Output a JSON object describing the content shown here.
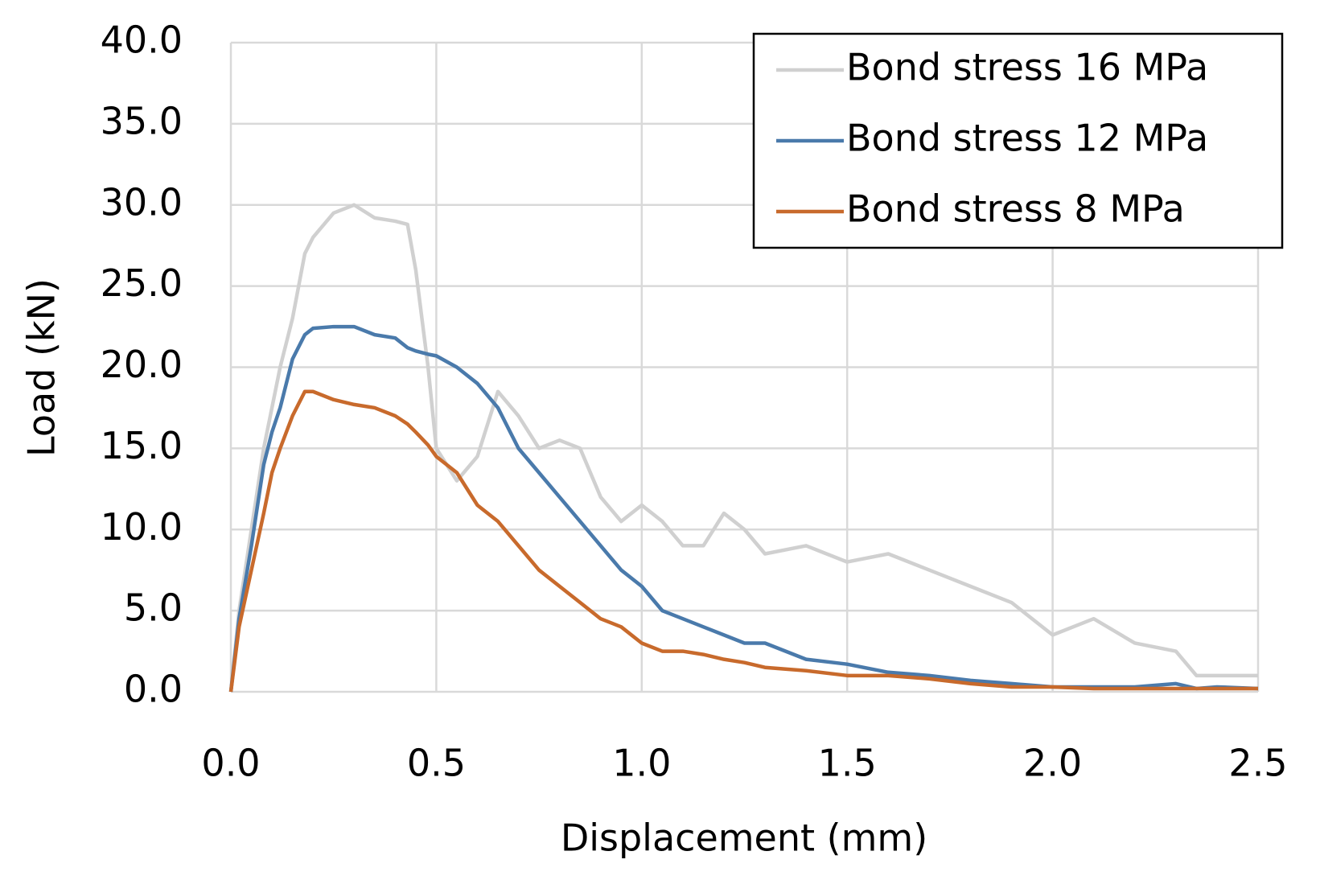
{
  "chart_data": {
    "type": "line",
    "x_label": "Displacement (mm)",
    "y_label": "Load (kN)",
    "x": [
      0,
      0.02,
      0.05,
      0.08,
      0.1,
      0.12,
      0.15,
      0.18,
      0.2,
      0.25,
      0.3,
      0.35,
      0.4,
      0.43,
      0.45,
      0.48,
      0.5,
      0.55,
      0.6,
      0.65,
      0.7,
      0.75,
      0.8,
      0.85,
      0.9,
      0.95,
      1.0,
      1.05,
      1.1,
      1.15,
      1.2,
      1.25,
      1.3,
      1.4,
      1.5,
      1.6,
      1.7,
      1.8,
      1.9,
      2.0,
      2.1,
      2.2,
      2.3,
      2.35,
      2.4,
      2.5
    ],
    "series": [
      {
        "name": "Bond stress 16 MPa",
        "color": "#d0d0d0",
        "values": [
          0,
          5,
          10,
          15,
          17.5,
          20,
          23,
          27,
          28,
          29.5,
          30,
          29.2,
          29,
          28.8,
          26,
          20,
          15,
          13,
          14.5,
          18.5,
          17,
          15,
          15.5,
          15,
          12,
          10.5,
          11.5,
          10.5,
          9,
          9,
          11,
          10,
          8.5,
          9,
          8,
          8.5,
          7.5,
          6.5,
          5.5,
          3.5,
          4.5,
          3,
          2.5,
          1,
          1,
          1
        ]
      },
      {
        "name": "Bond stress 12 MPa",
        "color": "#4a7aab",
        "values": [
          0,
          4.5,
          9,
          14,
          16,
          17.5,
          20.5,
          22,
          22.4,
          22.5,
          22.5,
          22,
          21.8,
          21.2,
          21,
          20.8,
          20.7,
          20,
          19,
          17.5,
          15,
          13.5,
          12,
          10.5,
          9,
          7.5,
          6.5,
          5,
          4.5,
          4,
          3.5,
          3,
          3,
          2,
          1.7,
          1.2,
          1,
          0.7,
          0.5,
          0.3,
          0.3,
          0.3,
          0.5,
          0.2,
          0.3,
          0.2
        ]
      },
      {
        "name": "Bond stress 8 MPa",
        "color": "#c86a2c",
        "values": [
          0,
          4,
          7.5,
          11,
          13.5,
          15,
          17,
          18.5,
          18.5,
          18,
          17.7,
          17.5,
          17,
          16.5,
          16,
          15.2,
          14.5,
          13.5,
          11.5,
          10.5,
          9,
          7.5,
          6.5,
          5.5,
          4.5,
          4,
          3,
          2.5,
          2.5,
          2.3,
          2,
          1.8,
          1.5,
          1.3,
          1,
          1,
          0.8,
          0.5,
          0.3,
          0.3,
          0.2,
          0.2,
          0.2,
          0.2,
          0.2,
          0.2
        ]
      }
    ],
    "xlim": [
      0,
      2.5
    ],
    "xticks": [
      {
        "value": 0,
        "label": "0.0"
      },
      0.5,
      {
        "value": 1,
        "label": "1.0"
      },
      1.5,
      {
        "value": 2,
        "label": "2.0"
      },
      2.5
    ],
    "ylim": [
      0,
      40
    ],
    "yticks": [
      {
        "value": 0,
        "label": "0.0"
      },
      {
        "value": 5,
        "label": "5.0"
      },
      {
        "value": 10,
        "label": "10.0"
      },
      {
        "value": 15,
        "label": "15.0"
      },
      {
        "value": 20,
        "label": "20.0"
      },
      {
        "value": 25,
        "label": "25.0"
      },
      {
        "value": 30,
        "label": "30.0"
      },
      {
        "value": 35,
        "label": "35.0"
      },
      {
        "value": 40,
        "label": "40.0"
      }
    ],
    "grid": true,
    "legend": "upper right"
  }
}
